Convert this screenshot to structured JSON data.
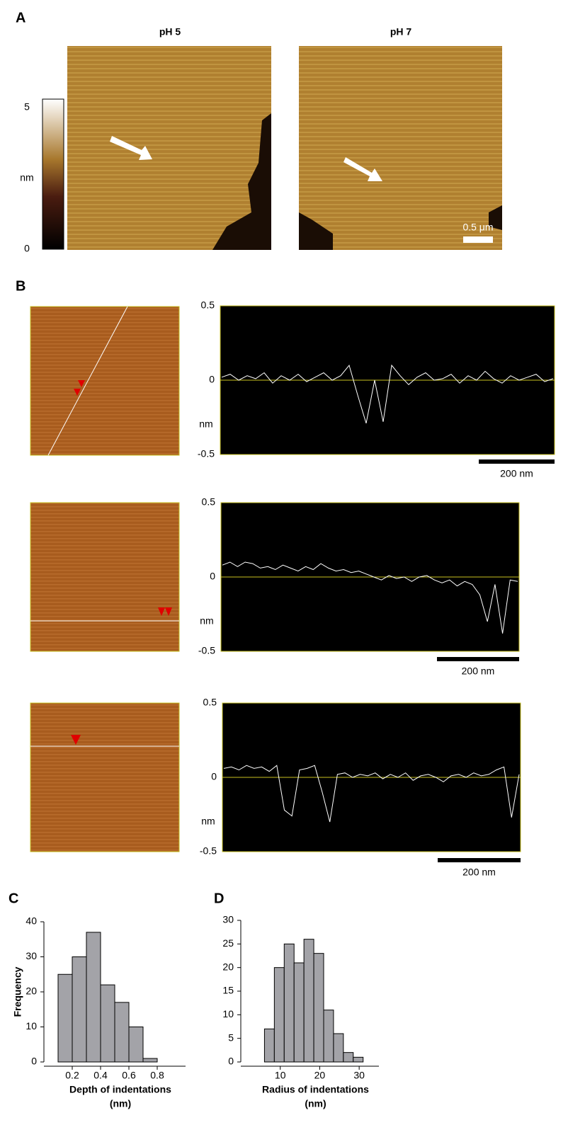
{
  "figure": {
    "panel_labels": [
      "A",
      "B",
      "C",
      "D"
    ],
    "panel_a": {
      "titles": [
        "pH 5",
        "pH 7"
      ],
      "colorbar_ticks": [
        5,
        0
      ],
      "colorbar_unit": "nm",
      "scale_bar": "0.5 μm"
    }
  },
  "chart_data": [
    {
      "type": "line",
      "ylim": [
        -0.5,
        0.5
      ],
      "yticks": [
        0.5,
        0,
        -0.5
      ],
      "y_label": "nm",
      "scale_bar": "200 nm",
      "color": "#ffffff",
      "values": [
        0.02,
        0.04,
        0.0,
        0.03,
        0.01,
        0.05,
        -0.02,
        0.03,
        0.0,
        0.04,
        -0.01,
        0.02,
        0.05,
        0.0,
        0.03,
        0.1,
        -0.1,
        -0.29,
        0.0,
        -0.28,
        0.1,
        0.03,
        -0.03,
        0.02,
        0.05,
        0.0,
        0.01,
        0.04,
        -0.02,
        0.03,
        0.0,
        0.06,
        0.01,
        -0.02,
        0.03,
        0.0,
        0.02,
        0.04,
        -0.01,
        0.01
      ]
    },
    {
      "type": "line",
      "ylim": [
        -0.5,
        0.5
      ],
      "yticks": [
        0.5,
        0,
        -0.5
      ],
      "y_label": "nm",
      "scale_bar": "200 nm",
      "color": "#ffffff",
      "values": [
        0.08,
        0.1,
        0.07,
        0.1,
        0.09,
        0.06,
        0.07,
        0.05,
        0.08,
        0.06,
        0.04,
        0.07,
        0.05,
        0.09,
        0.06,
        0.04,
        0.05,
        0.03,
        0.04,
        0.02,
        0.0,
        -0.02,
        0.01,
        -0.01,
        0.0,
        -0.03,
        0.0,
        0.01,
        -0.02,
        -0.04,
        -0.02,
        -0.06,
        -0.03,
        -0.05,
        -0.12,
        -0.3,
        -0.05,
        -0.38,
        -0.02,
        -0.03
      ]
    },
    {
      "type": "line",
      "ylim": [
        -0.5,
        0.5
      ],
      "yticks": [
        0.5,
        0,
        -0.5
      ],
      "y_label": "nm",
      "scale_bar": "200 nm",
      "color": "#ffffff",
      "values": [
        0.06,
        0.07,
        0.05,
        0.08,
        0.06,
        0.07,
        0.04,
        0.08,
        -0.22,
        -0.26,
        0.05,
        0.06,
        0.08,
        -0.1,
        -0.3,
        0.02,
        0.03,
        0.0,
        0.02,
        0.01,
        0.03,
        -0.01,
        0.02,
        0.0,
        0.03,
        -0.02,
        0.01,
        0.02,
        0.0,
        -0.03,
        0.01,
        0.02,
        0.0,
        0.03,
        0.01,
        0.02,
        0.05,
        0.07,
        -0.27,
        0.02
      ]
    },
    {
      "type": "histogram",
      "bins": [
        0.1,
        0.2,
        0.3,
        0.4,
        0.5,
        0.6,
        0.7,
        0.8
      ],
      "values": [
        25,
        30,
        37,
        22,
        17,
        10,
        1
      ],
      "xlim": [
        0,
        1
      ],
      "xticks": [
        0.2,
        0.4,
        0.6,
        0.8
      ],
      "ylim": [
        0,
        40
      ],
      "yticks": [
        0,
        10,
        20,
        30,
        40
      ],
      "x_label": "Depth of indentations",
      "x_unit": "(nm)",
      "y_label": "Frequency",
      "color": "#a3a3a8"
    },
    {
      "type": "histogram",
      "bins": [
        6,
        8.5,
        11,
        13.5,
        16,
        18.5,
        21,
        23.5,
        26,
        28.5,
        31
      ],
      "values": [
        7,
        20,
        25,
        21,
        26,
        23,
        11,
        6,
        2,
        1
      ],
      "xlim": [
        0,
        35
      ],
      "xticks": [
        10,
        20,
        30
      ],
      "ylim": [
        0,
        30
      ],
      "yticks": [
        0,
        5,
        10,
        15,
        20,
        25,
        30
      ],
      "x_label": "Radius of indentations",
      "x_unit": "(nm)",
      "color": "#a3a3a8"
    }
  ]
}
